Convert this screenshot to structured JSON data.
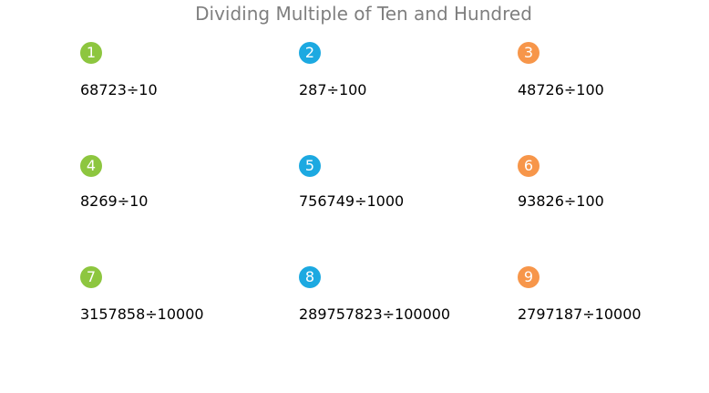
{
  "title": "Dividing Multiple of Ten and Hundred",
  "colors": {
    "green": "#8dc63f",
    "blue": "#1ca9e1",
    "orange": "#f7964a"
  },
  "problems": [
    {
      "number": "1",
      "color": "#8dc63f",
      "expression": "68723÷10"
    },
    {
      "number": "2",
      "color": "#1ca9e1",
      "expression": "287÷100"
    },
    {
      "number": "3",
      "color": "#f7964a",
      "expression": "48726÷100"
    },
    {
      "number": "4",
      "color": "#8dc63f",
      "expression": "8269÷10"
    },
    {
      "number": "5",
      "color": "#1ca9e1",
      "expression": "756749÷1000"
    },
    {
      "number": "6",
      "color": "#f7964a",
      "expression": "93826÷100"
    },
    {
      "number": "7",
      "color": "#8dc63f",
      "expression": "3157858÷10000"
    },
    {
      "number": "8",
      "color": "#1ca9e1",
      "expression": "289757823÷100000"
    },
    {
      "number": "9",
      "color": "#f7964a",
      "expression": "2797187÷10000"
    }
  ]
}
